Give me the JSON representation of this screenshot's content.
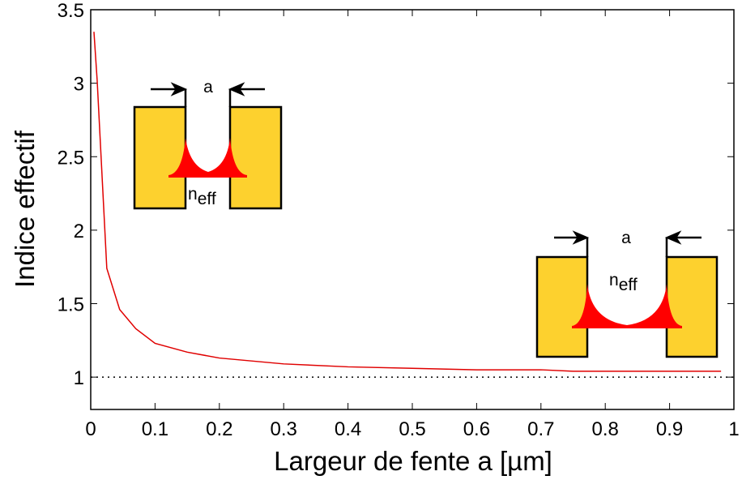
{
  "chart_data": {
    "type": "line",
    "x_label": "Largeur de fente a [µm]",
    "y_label": "Indice effectif",
    "x": [
      0.005,
      0.01,
      0.025,
      0.045,
      0.07,
      0.1,
      0.15,
      0.2,
      0.25,
      0.3,
      0.4,
      0.5,
      0.6,
      0.7,
      0.75,
      0.9,
      0.98
    ],
    "series": [
      {
        "color": "#e00000",
        "values": [
          3.35,
          3.02,
          1.74,
          1.46,
          1.33,
          1.23,
          1.17,
          1.13,
          1.11,
          1.09,
          1.07,
          1.06,
          1.05,
          1.05,
          1.04,
          1.04,
          1.04
        ]
      }
    ],
    "reference_line": 1,
    "xlim": [
      0,
      1
    ],
    "ylim": [
      0.78,
      3.5
    ],
    "xticks": [
      0,
      0.1,
      0.2,
      0.3,
      0.4,
      0.5,
      0.6,
      0.7,
      0.8,
      0.9,
      1
    ],
    "yticks": [
      1,
      1.5,
      2,
      2.5,
      3,
      3.5
    ],
    "insets": [
      {
        "width_label": "a",
        "index_label": "n",
        "index_subscript": "eff"
      },
      {
        "width_label": "a",
        "index_label": "n",
        "index_subscript": "eff"
      }
    ]
  }
}
